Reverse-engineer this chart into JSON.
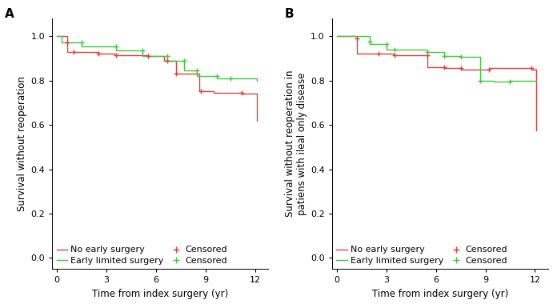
{
  "panel_A": {
    "label": "A",
    "ylabel": "Survival without reoperation",
    "xlabel": "Time from index surgery (yr)",
    "xlim": [
      -0.3,
      12.8
    ],
    "ylim": [
      -0.05,
      1.08
    ],
    "xticks": [
      0,
      3,
      6,
      9,
      12
    ],
    "yticks": [
      0.0,
      0.2,
      0.4,
      0.6,
      0.8,
      1.0
    ],
    "red_steps": [
      [
        0,
        1.0
      ],
      [
        0.6,
        1.0
      ],
      [
        0.6,
        0.93
      ],
      [
        2.5,
        0.93
      ],
      [
        2.5,
        0.92
      ],
      [
        3.5,
        0.92
      ],
      [
        3.5,
        0.915
      ],
      [
        5.5,
        0.915
      ],
      [
        5.5,
        0.91
      ],
      [
        6.5,
        0.91
      ],
      [
        6.5,
        0.89
      ],
      [
        7.2,
        0.89
      ],
      [
        7.2,
        0.83
      ],
      [
        8.6,
        0.83
      ],
      [
        8.6,
        0.75
      ],
      [
        9.5,
        0.75
      ],
      [
        9.5,
        0.745
      ],
      [
        11.2,
        0.745
      ],
      [
        11.2,
        0.74
      ],
      [
        12.1,
        0.74
      ],
      [
        12.1,
        0.62
      ]
    ],
    "red_censors": [
      [
        0.6,
        0.97
      ],
      [
        1.0,
        0.93
      ],
      [
        2.5,
        0.92
      ],
      [
        3.6,
        0.915
      ],
      [
        5.5,
        0.91
      ],
      [
        6.7,
        0.89
      ],
      [
        7.2,
        0.83
      ],
      [
        8.7,
        0.75
      ],
      [
        11.2,
        0.745
      ]
    ],
    "green_steps": [
      [
        0,
        1.0
      ],
      [
        0.3,
        1.0
      ],
      [
        0.3,
        0.97
      ],
      [
        1.5,
        0.97
      ],
      [
        1.5,
        0.955
      ],
      [
        3.6,
        0.955
      ],
      [
        3.6,
        0.935
      ],
      [
        5.2,
        0.935
      ],
      [
        5.2,
        0.91
      ],
      [
        6.7,
        0.91
      ],
      [
        6.7,
        0.89
      ],
      [
        7.7,
        0.89
      ],
      [
        7.7,
        0.845
      ],
      [
        8.5,
        0.845
      ],
      [
        8.5,
        0.82
      ],
      [
        9.7,
        0.82
      ],
      [
        9.7,
        0.81
      ],
      [
        12.1,
        0.81
      ],
      [
        12.1,
        0.8
      ]
    ],
    "green_censors": [
      [
        1.5,
        0.97
      ],
      [
        3.6,
        0.955
      ],
      [
        5.2,
        0.935
      ],
      [
        6.7,
        0.91
      ],
      [
        7.7,
        0.89
      ],
      [
        8.5,
        0.845
      ],
      [
        9.7,
        0.82
      ],
      [
        10.5,
        0.81
      ]
    ]
  },
  "panel_B": {
    "label": "B",
    "ylabel": "Survival without reoperation in\npatiens with ileal only disease",
    "xlabel": "Time from index surgery (yr)",
    "xlim": [
      -0.3,
      12.8
    ],
    "ylim": [
      -0.05,
      1.08
    ],
    "xticks": [
      0,
      3,
      6,
      9,
      12
    ],
    "yticks": [
      0.0,
      0.2,
      0.4,
      0.6,
      0.8,
      1.0
    ],
    "red_steps": [
      [
        0,
        1.0
      ],
      [
        1.2,
        1.0
      ],
      [
        1.2,
        0.92
      ],
      [
        3.5,
        0.92
      ],
      [
        3.5,
        0.915
      ],
      [
        5.5,
        0.915
      ],
      [
        5.5,
        0.86
      ],
      [
        6.5,
        0.86
      ],
      [
        6.5,
        0.855
      ],
      [
        7.5,
        0.855
      ],
      [
        7.5,
        0.85
      ],
      [
        9.2,
        0.85
      ],
      [
        9.2,
        0.855
      ],
      [
        11.8,
        0.855
      ],
      [
        11.8,
        0.85
      ],
      [
        12.1,
        0.85
      ],
      [
        12.1,
        0.575
      ]
    ],
    "red_censors": [
      [
        1.2,
        0.99
      ],
      [
        2.5,
        0.92
      ],
      [
        3.5,
        0.915
      ],
      [
        5.5,
        0.915
      ],
      [
        6.5,
        0.86
      ],
      [
        7.5,
        0.855
      ],
      [
        9.2,
        0.85
      ],
      [
        11.8,
        0.855
      ]
    ],
    "green_steps": [
      [
        0,
        1.0
      ],
      [
        2.0,
        1.0
      ],
      [
        2.0,
        0.965
      ],
      [
        3.0,
        0.965
      ],
      [
        3.0,
        0.94
      ],
      [
        5.5,
        0.94
      ],
      [
        5.5,
        0.93
      ],
      [
        6.5,
        0.93
      ],
      [
        6.5,
        0.91
      ],
      [
        7.5,
        0.91
      ],
      [
        7.5,
        0.905
      ],
      [
        8.7,
        0.905
      ],
      [
        8.7,
        0.8
      ],
      [
        9.5,
        0.8
      ],
      [
        9.5,
        0.795
      ],
      [
        10.5,
        0.795
      ],
      [
        10.5,
        0.8
      ],
      [
        12.1,
        0.8
      ]
    ],
    "green_censors": [
      [
        2.0,
        0.975
      ],
      [
        3.0,
        0.965
      ],
      [
        3.5,
        0.94
      ],
      [
        5.5,
        0.93
      ],
      [
        6.5,
        0.91
      ],
      [
        7.5,
        0.905
      ],
      [
        8.7,
        0.8
      ],
      [
        10.5,
        0.795
      ]
    ]
  },
  "red_color": "#e04040",
  "green_color": "#40c840",
  "legend_labels": [
    "No early surgery",
    "Early limited surgery"
  ],
  "censor_label": "Censored",
  "fontsize": 8,
  "label_fontsize": 8.5,
  "tick_fontsize": 8,
  "title_fontsize": 10
}
